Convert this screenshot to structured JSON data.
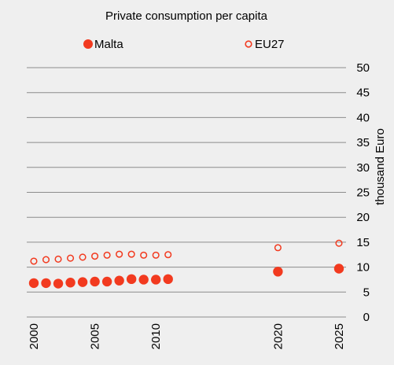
{
  "chart_data": {
    "type": "scatter",
    "title": "Private consumption per capita",
    "ylabel": "thousand Euro",
    "xlabel": "",
    "x_ticks": [
      2000,
      2005,
      2010,
      2020,
      2025
    ],
    "xlim": [
      2000,
      2025
    ],
    "y_ticks": [
      0,
      5,
      10,
      15,
      20,
      25,
      30,
      35,
      40,
      45,
      50
    ],
    "ylim": [
      0,
      50
    ],
    "grid": "horizontal",
    "y_axis_side": "right",
    "legend_position": "top",
    "colors": {
      "accent": "#f23a1f",
      "background": "#efefef",
      "grid": "#8c8c8c"
    },
    "series": [
      {
        "name": "Malta",
        "marker": "filled-circle",
        "points": [
          {
            "x": 2000,
            "y": 6.8
          },
          {
            "x": 2001,
            "y": 6.8
          },
          {
            "x": 2002,
            "y": 6.7
          },
          {
            "x": 2003,
            "y": 6.9
          },
          {
            "x": 2004,
            "y": 7.0
          },
          {
            "x": 2005,
            "y": 7.1
          },
          {
            "x": 2006,
            "y": 7.1
          },
          {
            "x": 2007,
            "y": 7.3
          },
          {
            "x": 2008,
            "y": 7.6
          },
          {
            "x": 2009,
            "y": 7.5
          },
          {
            "x": 2010,
            "y": 7.5
          },
          {
            "x": 2011,
            "y": 7.6
          },
          {
            "x": 2020,
            "y": 9.1
          },
          {
            "x": 2025,
            "y": 9.7
          }
        ]
      },
      {
        "name": "EU27",
        "marker": "open-circle",
        "points": [
          {
            "x": 2000,
            "y": 11.2
          },
          {
            "x": 2001,
            "y": 11.5
          },
          {
            "x": 2002,
            "y": 11.6
          },
          {
            "x": 2003,
            "y": 11.8
          },
          {
            "x": 2004,
            "y": 12.0
          },
          {
            "x": 2005,
            "y": 12.2
          },
          {
            "x": 2006,
            "y": 12.4
          },
          {
            "x": 2007,
            "y": 12.6
          },
          {
            "x": 2008,
            "y": 12.6
          },
          {
            "x": 2009,
            "y": 12.4
          },
          {
            "x": 2010,
            "y": 12.4
          },
          {
            "x": 2011,
            "y": 12.5
          },
          {
            "x": 2020,
            "y": 13.9
          },
          {
            "x": 2025,
            "y": 14.8
          }
        ]
      }
    ]
  }
}
